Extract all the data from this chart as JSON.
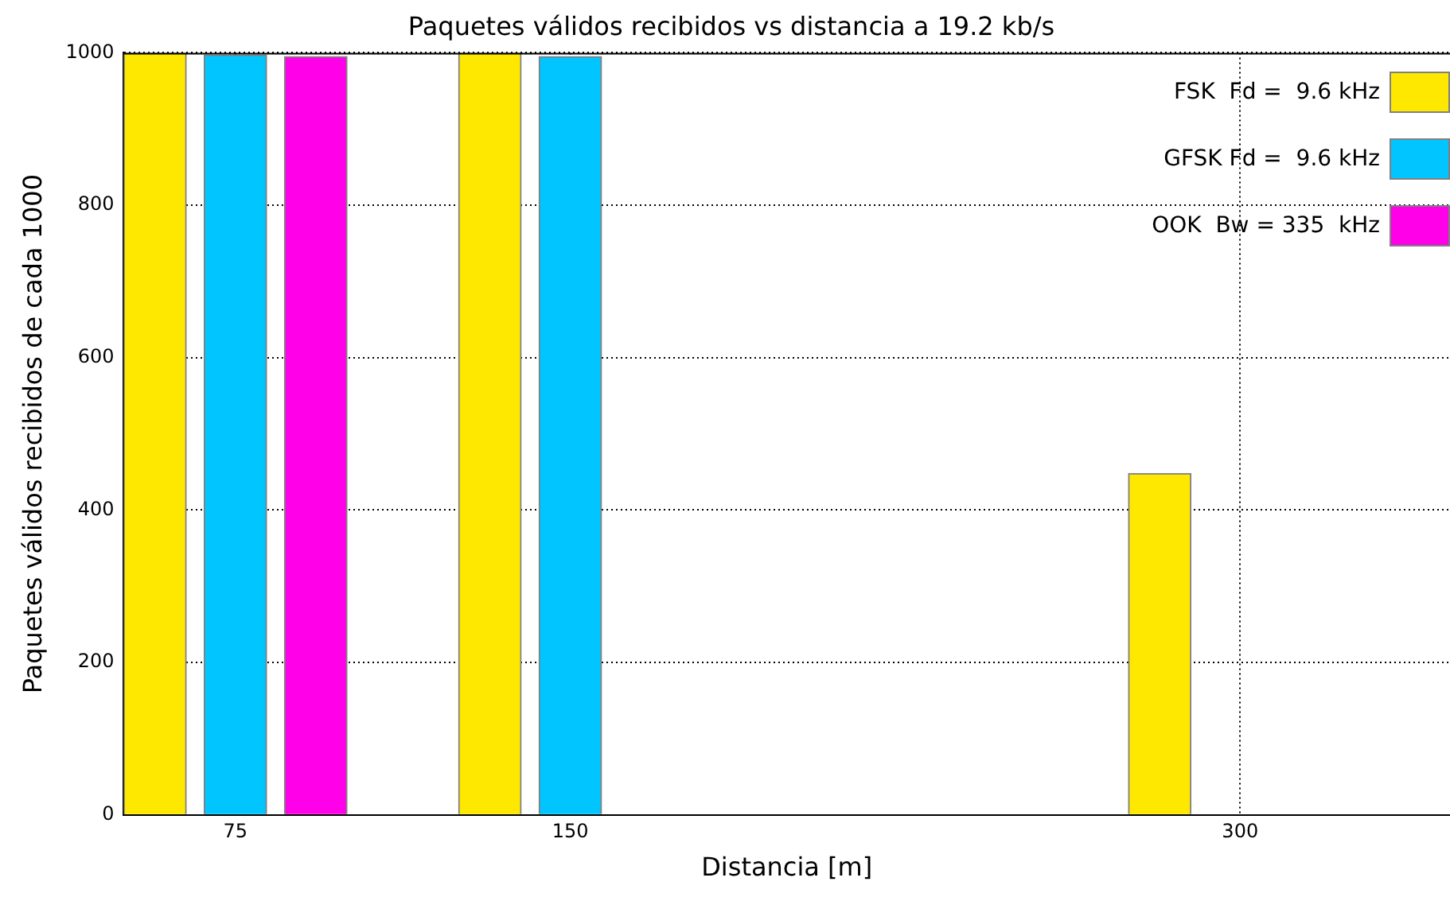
{
  "chart_data": {
    "type": "bar",
    "title": "Paquetes válidos recibidos vs distancia a 19.2 kb/s",
    "xlabel": "Distancia [m]",
    "ylabel": "Paquetes válidos recibidos de cada 1000",
    "xlim": [
      50,
      347
    ],
    "xticks": [
      75,
      150,
      300
    ],
    "ylim": [
      0,
      1000
    ],
    "yticks": [
      0,
      200,
      400,
      600,
      800,
      1000
    ],
    "grid": true,
    "legend": "top right",
    "series": [
      {
        "name": "FSK  Fd =  9.6 kHz",
        "color": "#ffe800",
        "x": [
          57,
          132,
          282
        ],
        "values": [
          1000,
          1000,
          448
        ]
      },
      {
        "name": "GFSK Fd =  9.6 kHz",
        "color": "#00c5ff",
        "x": [
          75,
          150
        ],
        "values": [
          997,
          995
        ]
      },
      {
        "name": "OOK  Bw = 335  kHz",
        "color": "#ff00e8",
        "x": [
          93
        ],
        "values": [
          995
        ]
      }
    ]
  }
}
